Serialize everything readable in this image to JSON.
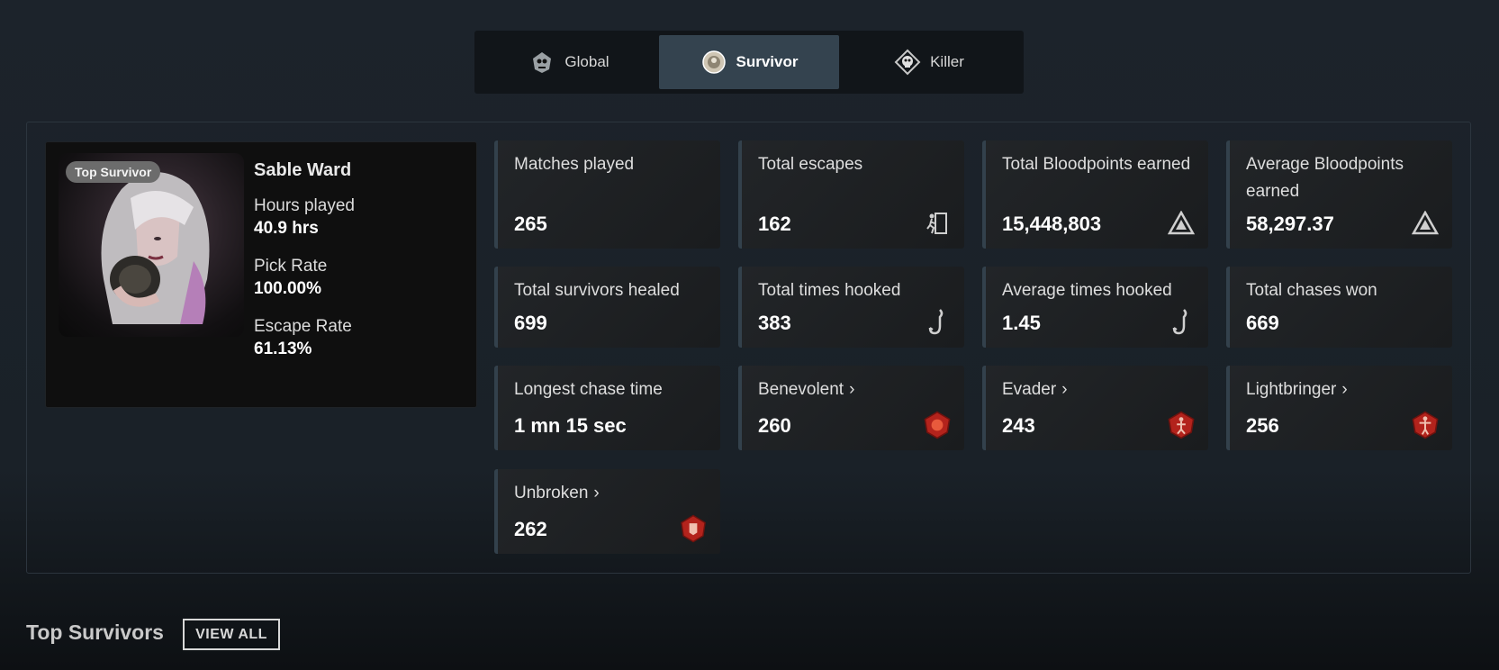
{
  "tabs": [
    {
      "label": "Global",
      "icon": "global-skull-icon"
    },
    {
      "label": "Survivor",
      "icon": "survivor-emblem-icon"
    },
    {
      "label": "Killer",
      "icon": "killer-skull-icon"
    }
  ],
  "active_tab": "Survivor",
  "character": {
    "badge": "Top Survivor",
    "name": "Sable Ward",
    "hours_label": "Hours played",
    "hours_value": "40.9 hrs",
    "pick_label": "Pick Rate",
    "pick_value": "100.00%",
    "escape_label": "Escape Rate",
    "escape_value": "61.13%"
  },
  "stats": [
    {
      "label": "Matches played",
      "value": "265",
      "icon": ""
    },
    {
      "label": "Total escapes",
      "value": "162",
      "icon": "exit-door-icon"
    },
    {
      "label": "Total Bloodpoints earned",
      "value": "15,448,803",
      "icon": "bloodpoints-icon"
    },
    {
      "label": "Average Bloodpoints earned",
      "value": "58,297.37",
      "icon": "bloodpoints-icon"
    },
    {
      "label": "Total survivors healed",
      "value": "699",
      "icon": ""
    },
    {
      "label": "Total times hooked",
      "value": "383",
      "icon": "hook-icon"
    },
    {
      "label": "Average times hooked",
      "value": "1.45",
      "icon": "hook-icon"
    },
    {
      "label": "Total chases won",
      "value": "669",
      "icon": ""
    },
    {
      "label": "Longest chase time",
      "value": "1 mn 15 sec",
      "icon": ""
    },
    {
      "label": "Benevolent",
      "value": "260",
      "icon": "benevolent-emblem-icon"
    },
    {
      "label": "Evader",
      "value": "243",
      "icon": "evader-emblem-icon"
    },
    {
      "label": "Lightbringer",
      "value": "256",
      "icon": "lightbringer-emblem-icon"
    },
    {
      "label": "Unbroken",
      "value": "262",
      "icon": "unbroken-emblem-icon"
    }
  ],
  "section": {
    "title": "Top Survivors",
    "view_all": "VIEW ALL"
  },
  "colors": {
    "background": "#1c232b",
    "active_tab": "#34434f",
    "card": "#222528",
    "card_accent": "#33414c",
    "emblem_red": "#b3231c"
  }
}
